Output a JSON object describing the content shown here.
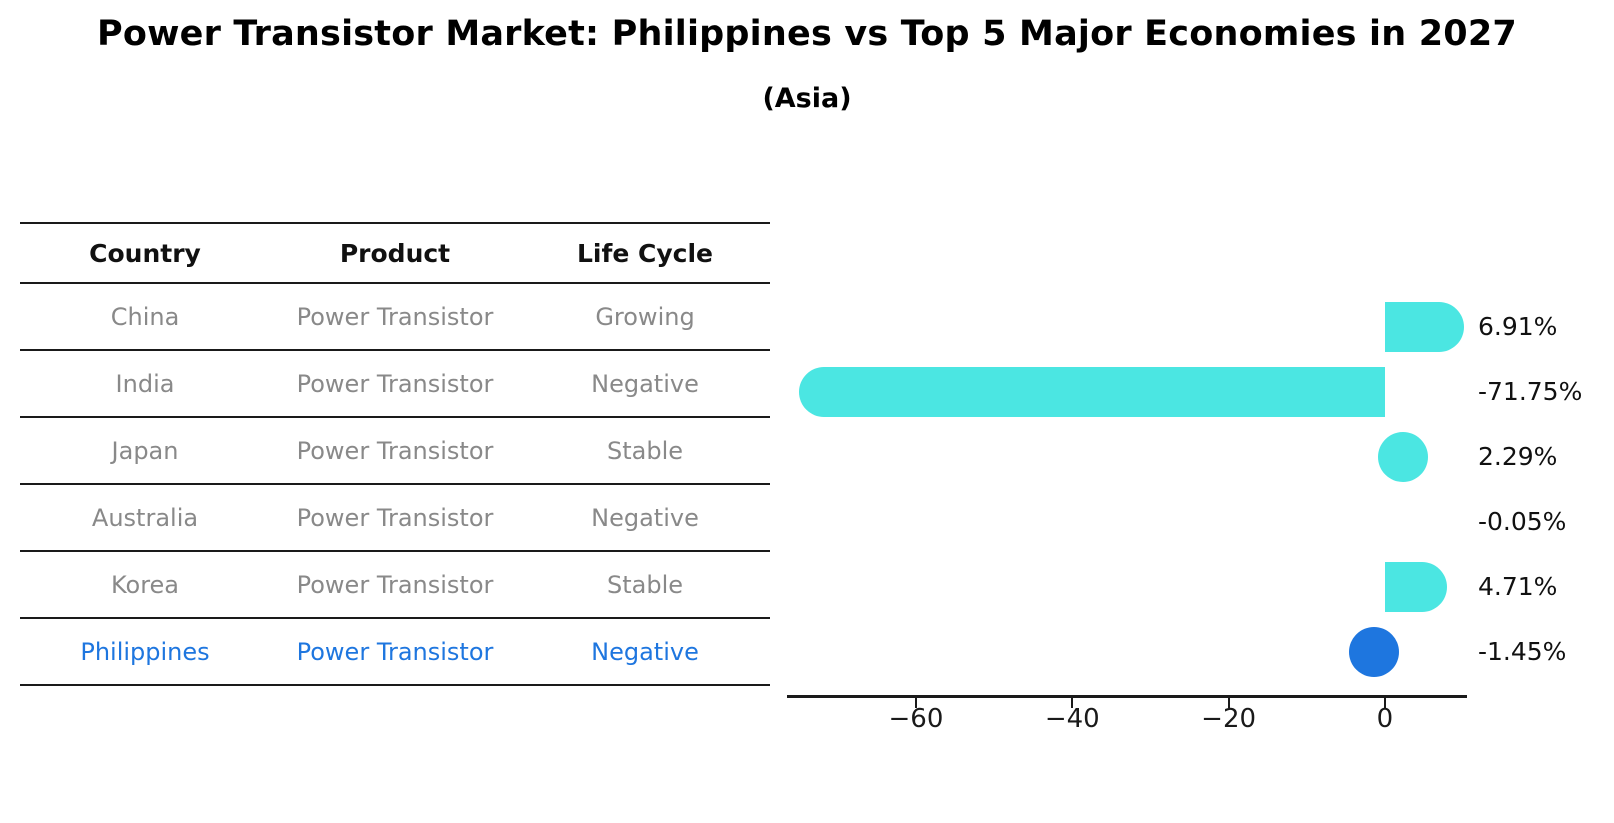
{
  "figure": {
    "title": "Power Transistor Market: Philippines vs Top 5 Major Economies in 2027",
    "subtitle": "(Asia)"
  },
  "table": {
    "headers": [
      "Country",
      "Product",
      "Life Cycle"
    ],
    "rows": [
      {
        "country": "China",
        "product": "Power Transistor",
        "life_cycle": "Growing",
        "highlight": false
      },
      {
        "country": "India",
        "product": "Power Transistor",
        "life_cycle": "Negative",
        "highlight": false
      },
      {
        "country": "Japan",
        "product": "Power Transistor",
        "life_cycle": "Stable",
        "highlight": false
      },
      {
        "country": "Australia",
        "product": "Power Transistor",
        "life_cycle": "Negative",
        "highlight": false
      },
      {
        "country": "Korea",
        "product": "Power Transistor",
        "life_cycle": "Stable",
        "highlight": false
      },
      {
        "country": "Philippines",
        "product": "Power Transistor",
        "life_cycle": "Negative",
        "highlight": true
      }
    ]
  },
  "chart_data": {
    "type": "bar",
    "orientation": "horizontal",
    "title": "Power Transistor Market: Philippines vs Top 5 Major Economies in 2027",
    "subtitle": "(Asia)",
    "categories": [
      "China",
      "India",
      "Japan",
      "Australia",
      "Korea",
      "Philippines"
    ],
    "values": [
      6.91,
      -71.75,
      2.29,
      -0.05,
      4.71,
      -1.45
    ],
    "value_labels": [
      "6.91%",
      "-71.75%",
      "2.29%",
      "-0.05%",
      "4.71%",
      "-1.45%"
    ],
    "xlabel": "",
    "ylabel": "",
    "xlim": [
      -76.5,
      10.5
    ],
    "xticks": [
      -60,
      -40,
      -20,
      0
    ],
    "xtick_labels": [
      "−60",
      "−40",
      "−20",
      "0"
    ],
    "grid": false,
    "legend": false,
    "bar_color": "#4BE6E2",
    "highlight_color": "#1E76DF",
    "highlight_index": 5
  },
  "colors": {
    "background": "#FFFFFF",
    "table_header_text": "#111111",
    "table_body_text": "#898989",
    "highlight_text": "#1E76DF",
    "axis": "#1A1A1A",
    "value_label_text": "#111111"
  }
}
